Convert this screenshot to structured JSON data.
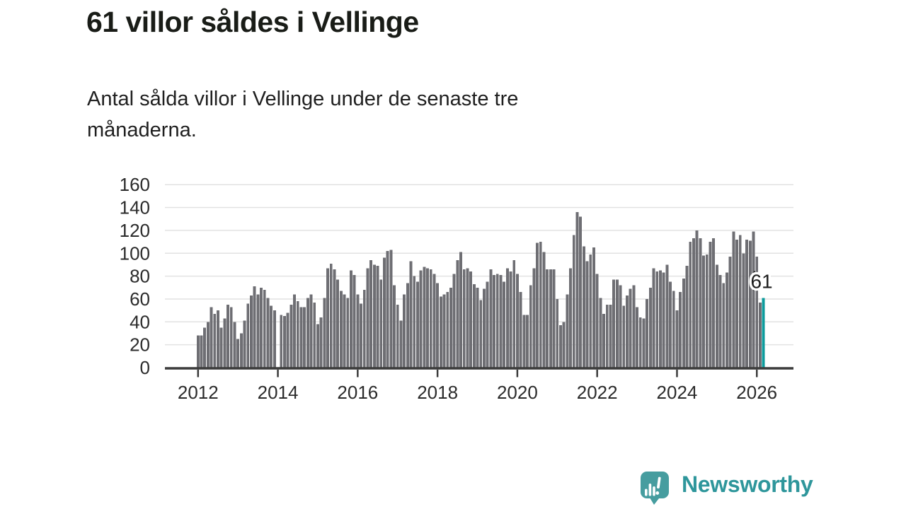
{
  "header": {
    "title": "61 villor såldes i Vellinge",
    "subtitle_lines": [
      "Antal sålda villor i Vellinge under de senaste tre",
      "månaderna."
    ]
  },
  "chart_data": {
    "type": "bar",
    "title": "61 villor såldes i Vellinge",
    "ylabel": "",
    "xlabel": "",
    "unit": "sålda villor (rullande tre månader)",
    "start_month": "2012-01",
    "end_month": "2026-03",
    "grid": true,
    "ylim": [
      0,
      160
    ],
    "yticks": [
      0,
      20,
      40,
      60,
      80,
      100,
      120,
      140,
      160
    ],
    "xticks": [
      {
        "label": "2012",
        "month_index": 0
      },
      {
        "label": "2014",
        "month_index": 24
      },
      {
        "label": "2016",
        "month_index": 48
      },
      {
        "label": "2018",
        "month_index": 72
      },
      {
        "label": "2020",
        "month_index": 96
      },
      {
        "label": "2022",
        "month_index": 120
      },
      {
        "label": "2024",
        "month_index": 144
      },
      {
        "label": "2026",
        "month_index": 168
      }
    ],
    "values": [
      28,
      28,
      35,
      40,
      53,
      47,
      50,
      35,
      43,
      55,
      53,
      40,
      25,
      30,
      41,
      56,
      63,
      71,
      64,
      70,
      68,
      61,
      54,
      50,
      null,
      46,
      45,
      48,
      55,
      64,
      58,
      53,
      53,
      61,
      64,
      57,
      38,
      44,
      61,
      87,
      91,
      86,
      77,
      67,
      64,
      61,
      85,
      81,
      64,
      56,
      68,
      87,
      94,
      90,
      89,
      77,
      96,
      102,
      103,
      72,
      55,
      41,
      64,
      74,
      93,
      80,
      75,
      85,
      88,
      87,
      86,
      82,
      74,
      62,
      64,
      66,
      70,
      82,
      94,
      101,
      86,
      87,
      84,
      73,
      70,
      59,
      69,
      75,
      86,
      81,
      82,
      81,
      75,
      87,
      84,
      94,
      82,
      66,
      46,
      46,
      72,
      87,
      109,
      110,
      101,
      86,
      86,
      86,
      60,
      37,
      40,
      64,
      87,
      116,
      136,
      132,
      106,
      93,
      99,
      105,
      82,
      61,
      47,
      55,
      55,
      77,
      77,
      72,
      54,
      63,
      69,
      72,
      53,
      44,
      43,
      60,
      70,
      87,
      84,
      85,
      83,
      90,
      75,
      67,
      50,
      66,
      78,
      89,
      110,
      113,
      120,
      113,
      98,
      99,
      110,
      113,
      90,
      81,
      74,
      83,
      97,
      119,
      112,
      116,
      100,
      112,
      111,
      119,
      97,
      57,
      61
    ],
    "highlight": {
      "index": 170,
      "value": 61,
      "label": "61"
    },
    "colors": {
      "bar": "#6e6e73",
      "highlight": "#0d9b9c",
      "grid": "#e2e2e2",
      "axis": "#3b3b3b",
      "tick_label": "#2b2b2b",
      "annotation": "#1d1d1d"
    }
  },
  "logo": {
    "text": "Newsworthy",
    "icon": "newsworthy-chart-bubble-icon",
    "colors": {
      "bubble": "#469d9f",
      "text": "#2e969b",
      "marks": "#ffffff"
    }
  }
}
